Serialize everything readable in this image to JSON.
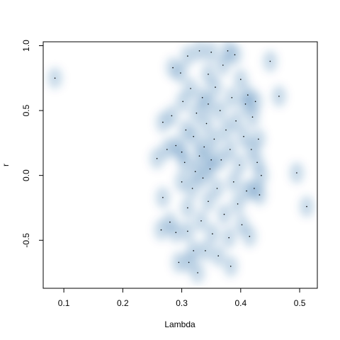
{
  "chart_data": {
    "type": "scatter",
    "style": "smoothed density scatter (blue)",
    "xlabel": "Lambda",
    "ylabel": "r",
    "xlim": [
      0.065,
      0.53
    ],
    "ylim": [
      -0.87,
      1.03
    ],
    "x_ticks": [
      0.1,
      0.2,
      0.3,
      0.4,
      0.5
    ],
    "x_tick_labels": [
      "0.1",
      "0.2",
      "0.3",
      "0.4",
      "0.5"
    ],
    "y_ticks": [
      -0.5,
      0.0,
      0.5,
      1.0
    ],
    "y_tick_labels": [
      "-0.5",
      "0.0",
      "0.5",
      "1.0"
    ],
    "grid": false,
    "colors": {
      "density": "#08519c",
      "points": "#000000",
      "axis": "#000000"
    },
    "points": [
      {
        "x": 0.085,
        "y": 0.75
      },
      {
        "x": 0.45,
        "y": 0.88
      },
      {
        "x": 0.465,
        "y": 0.61
      },
      {
        "x": 0.495,
        "y": 0.02
      },
      {
        "x": 0.512,
        "y": -0.24
      },
      {
        "x": 0.258,
        "y": 0.13
      },
      {
        "x": 0.265,
        "y": -0.42
      },
      {
        "x": 0.268,
        "y": -0.17
      },
      {
        "x": 0.268,
        "y": 0.41
      },
      {
        "x": 0.275,
        "y": 0.2
      },
      {
        "x": 0.28,
        "y": -0.36
      },
      {
        "x": 0.283,
        "y": 0.46
      },
      {
        "x": 0.285,
        "y": 0.83
      },
      {
        "x": 0.29,
        "y": -0.44
      },
      {
        "x": 0.29,
        "y": 0.23
      },
      {
        "x": 0.295,
        "y": -0.67
      },
      {
        "x": 0.298,
        "y": 0.79
      },
      {
        "x": 0.3,
        "y": -0.05
      },
      {
        "x": 0.302,
        "y": 0.57
      },
      {
        "x": 0.305,
        "y": 0.1
      },
      {
        "x": 0.307,
        "y": 0.35
      },
      {
        "x": 0.31,
        "y": -0.25
      },
      {
        "x": 0.31,
        "y": 0.92
      },
      {
        "x": 0.312,
        "y": -0.67
      },
      {
        "x": 0.315,
        "y": 0.67
      },
      {
        "x": 0.318,
        "y": -0.1
      },
      {
        "x": 0.32,
        "y": 0.3
      },
      {
        "x": 0.32,
        "y": -0.58
      },
      {
        "x": 0.323,
        "y": 0.03
      },
      {
        "x": 0.325,
        "y": 0.48
      },
      {
        "x": 0.327,
        "y": -0.75
      },
      {
        "x": 0.33,
        "y": 0.96
      },
      {
        "x": 0.33,
        "y": 0.15
      },
      {
        "x": 0.333,
        "y": -0.35
      },
      {
        "x": 0.335,
        "y": 0.6
      },
      {
        "x": 0.336,
        "y": -0.02
      },
      {
        "x": 0.338,
        "y": 0.22
      },
      {
        "x": 0.34,
        "y": -0.58
      },
      {
        "x": 0.342,
        "y": 0.4
      },
      {
        "x": 0.345,
        "y": 0.78
      },
      {
        "x": 0.345,
        "y": -0.2
      },
      {
        "x": 0.348,
        "y": 0.05
      },
      {
        "x": 0.35,
        "y": 0.95
      },
      {
        "x": 0.352,
        "y": -0.45
      },
      {
        "x": 0.355,
        "y": 0.28
      },
      {
        "x": 0.357,
        "y": 0.68
      },
      {
        "x": 0.36,
        "y": -0.1
      },
      {
        "x": 0.362,
        "y": -0.62
      },
      {
        "x": 0.365,
        "y": 0.5
      },
      {
        "x": 0.367,
        "y": 0.12
      },
      {
        "x": 0.37,
        "y": 0.85
      },
      {
        "x": 0.372,
        "y": -0.3
      },
      {
        "x": 0.375,
        "y": 0.35
      },
      {
        "x": 0.378,
        "y": 0.96
      },
      {
        "x": 0.38,
        "y": -0.48
      },
      {
        "x": 0.382,
        "y": 0.2
      },
      {
        "x": 0.383,
        "y": -0.7
      },
      {
        "x": 0.385,
        "y": 0.6
      },
      {
        "x": 0.388,
        "y": -0.05
      },
      {
        "x": 0.39,
        "y": 0.93
      },
      {
        "x": 0.392,
        "y": 0.42
      },
      {
        "x": 0.395,
        "y": -0.22
      },
      {
        "x": 0.398,
        "y": 0.08
      },
      {
        "x": 0.4,
        "y": 0.74
      },
      {
        "x": 0.402,
        "y": -0.38
      },
      {
        "x": 0.405,
        "y": 0.3
      },
      {
        "x": 0.408,
        "y": 0.55
      },
      {
        "x": 0.41,
        "y": -0.12
      },
      {
        "x": 0.412,
        "y": 0.62
      },
      {
        "x": 0.415,
        "y": -0.47
      },
      {
        "x": 0.418,
        "y": 0.2
      },
      {
        "x": 0.42,
        "y": 0.45
      },
      {
        "x": 0.423,
        "y": -0.1
      },
      {
        "x": 0.425,
        "y": 0.57
      },
      {
        "x": 0.428,
        "y": 0.1
      },
      {
        "x": 0.43,
        "y": 0.28
      },
      {
        "x": 0.432,
        "y": -0.15
      },
      {
        "x": 0.435,
        "y": 0.0
      },
      {
        "x": 0.31,
        "y": -0.43
      },
      {
        "x": 0.3,
        "y": 0.18
      },
      {
        "x": 0.345,
        "y": 0.55
      },
      {
        "x": 0.35,
        "y": 0.12
      }
    ]
  }
}
